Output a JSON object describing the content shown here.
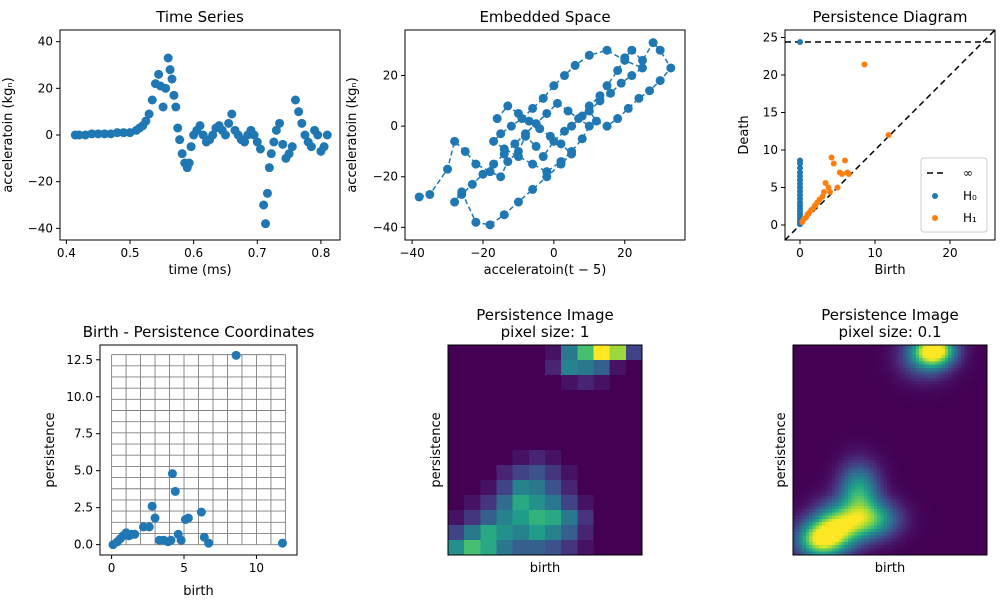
{
  "colors": {
    "blue": "#1f77b4",
    "orange": "#ff7f0e",
    "grid": "#808080",
    "viridis_low": "#440154",
    "viridis_high": "#fde725"
  },
  "chart_data": [
    {
      "type": "scatter",
      "title": "Time Series",
      "xlabel": "time (ms)",
      "ylabel": "acceleratoin (kgₙ)",
      "xlim": [
        0.39,
        0.83
      ],
      "ylim": [
        -45,
        45
      ],
      "xticks": [
        "0.4",
        "0.5",
        "0.6",
        "0.7",
        "0.8"
      ],
      "yticks": [
        "40",
        "20",
        "0",
        "−20",
        "−40"
      ],
      "xtick_values": [
        0.4,
        0.5,
        0.6,
        0.7,
        0.8
      ],
      "ytick_values": [
        40,
        20,
        0,
        -20,
        -40
      ],
      "x": [
        0.414,
        0.42,
        0.43,
        0.44,
        0.45,
        0.46,
        0.47,
        0.48,
        0.49,
        0.5,
        0.51,
        0.515,
        0.52,
        0.525,
        0.53,
        0.535,
        0.54,
        0.545,
        0.548,
        0.552,
        0.556,
        0.56,
        0.563,
        0.566,
        0.569,
        0.572,
        0.575,
        0.578,
        0.582,
        0.586,
        0.59,
        0.593,
        0.596,
        0.6,
        0.605,
        0.61,
        0.615,
        0.62,
        0.625,
        0.63,
        0.635,
        0.64,
        0.645,
        0.65,
        0.655,
        0.66,
        0.665,
        0.67,
        0.675,
        0.68,
        0.685,
        0.69,
        0.695,
        0.7,
        0.705,
        0.71,
        0.713,
        0.716,
        0.719,
        0.722,
        0.726,
        0.73,
        0.735,
        0.74,
        0.745,
        0.75,
        0.755,
        0.76,
        0.765,
        0.77,
        0.775,
        0.78,
        0.785,
        0.79,
        0.795,
        0.8,
        0.805,
        0.81
      ],
      "y": [
        0,
        0,
        0,
        0.5,
        0.5,
        0.5,
        0.5,
        1,
        1,
        1,
        2,
        3,
        4,
        6,
        9,
        15,
        22,
        26,
        21,
        12,
        20,
        33,
        28,
        24,
        17,
        12,
        3,
        -2,
        -8,
        -12,
        -14,
        -12,
        -5,
        0,
        2,
        4,
        0,
        -3,
        -2,
        0,
        3,
        4,
        2,
        0,
        5,
        9,
        2,
        0,
        -2,
        -3,
        0,
        2,
        0,
        -3,
        -6,
        -30,
        -38,
        -25,
        -14,
        -8,
        -3,
        2,
        5,
        -4,
        -10,
        -8,
        -5,
        15,
        10,
        5,
        0,
        -3,
        -5,
        2,
        0,
        -7,
        -5,
        0
      ]
    },
    {
      "type": "line",
      "title": "Embedded Space",
      "xlabel": "acceleratoin(t − 5)",
      "ylabel": "acceleratoin (kgₙ)",
      "xlim": [
        -42,
        37
      ],
      "ylim": [
        -45,
        38
      ],
      "xticks": [
        "−40",
        "−20",
        "0",
        "20"
      ],
      "yticks": [
        "20",
        "0",
        "−20",
        "−40"
      ],
      "xtick_values": [
        -40,
        -20,
        0,
        20
      ],
      "ytick_values": [
        20,
        0,
        -20,
        -40
      ],
      "line_style": "dashed",
      "x": [
        -38,
        -35,
        -30,
        -28,
        -25,
        -22,
        -18,
        -15,
        -13,
        -10,
        -8,
        -5,
        -3,
        0,
        3,
        5,
        8,
        10,
        13,
        15,
        18,
        20,
        22,
        25,
        28,
        30,
        33,
        30,
        27,
        24,
        21,
        18,
        15,
        12,
        10,
        13,
        16,
        19,
        22,
        25,
        20,
        15,
        10,
        6,
        3,
        0,
        -3,
        -6,
        -9,
        -12,
        -15,
        -17,
        -14,
        -10,
        -6,
        -2,
        2,
        5,
        8,
        10,
        7,
        4,
        1,
        -2,
        -5,
        -8,
        -11,
        -14,
        -17,
        -20,
        -23,
        -26,
        -28,
        -26,
        -22,
        -18,
        -14,
        -10,
        -6,
        -2,
        2,
        5,
        2,
        -1,
        -4,
        -7,
        -10,
        -13,
        -16
      ],
      "y": [
        -28,
        -27,
        -17,
        -6,
        -10,
        -15,
        -18,
        -20,
        -14,
        -10,
        -4,
        -8,
        -12,
        -6,
        -2,
        0,
        4,
        8,
        12,
        16,
        22,
        27,
        30,
        26,
        33,
        30,
        23,
        18,
        14,
        11,
        7,
        3,
        0,
        2,
        6,
        10,
        13,
        17,
        20,
        23,
        26,
        30,
        28,
        24,
        20,
        16,
        11,
        7,
        3,
        0,
        -3,
        -6,
        -9,
        -12,
        -15,
        -18,
        -14,
        -10,
        -5,
        0,
        3,
        6,
        9,
        5,
        1,
        -3,
        -7,
        -11,
        -15,
        -19,
        -23,
        -27,
        -30,
        -26,
        -38,
        -39,
        -35,
        -30,
        -25,
        -20,
        -15,
        -11,
        -7,
        -4,
        -1,
        2,
        5,
        8,
        3
      ]
    },
    {
      "type": "scatter",
      "title": "Persistence Diagram",
      "xlabel": "Birth",
      "ylabel": "Death",
      "xlim": [
        -2,
        26
      ],
      "ylim": [
        -2,
        26
      ],
      "xticks": [
        "0",
        "10",
        "20"
      ],
      "yticks": [
        "25",
        "20",
        "15",
        "10",
        "5",
        "0"
      ],
      "xtick_values": [
        0,
        10,
        20
      ],
      "ytick_values": [
        25,
        20,
        15,
        10,
        5,
        0
      ],
      "infinity_level": 24.4,
      "legend": {
        "position": "lower-right",
        "entries": [
          "∞",
          "H₀",
          "H₁"
        ]
      },
      "series": [
        {
          "name": "H₀",
          "x": [
            0,
            0,
            0,
            0,
            0,
            0,
            0,
            0,
            0,
            0,
            0,
            0,
            0,
            0,
            0,
            0,
            0,
            0,
            0,
            0,
            0
          ],
          "y": [
            24.4,
            8.6,
            8.2,
            7.6,
            7.0,
            6.5,
            6.0,
            5.5,
            5.0,
            4.5,
            4.0,
            3.5,
            3.0,
            2.6,
            2.2,
            1.8,
            1.4,
            1.0,
            0.6,
            0.3,
            0.1
          ]
        },
        {
          "name": "H₁",
          "x": [
            0.3,
            0.5,
            0.8,
            1.0,
            1.2,
            1.5,
            1.8,
            2.0,
            2.3,
            2.6,
            3.0,
            3.2,
            3.4,
            3.8,
            4.0,
            4.2,
            4.5,
            5.0,
            5.3,
            5.6,
            6.0,
            6.3,
            6.5,
            8.6,
            11.8
          ],
          "y": [
            0.4,
            0.8,
            1.0,
            1.4,
            1.6,
            2.0,
            2.2,
            2.6,
            3.0,
            3.4,
            3.8,
            4.4,
            5.6,
            5.0,
            4.4,
            9.0,
            8.2,
            5.0,
            7.0,
            6.8,
            8.6,
            7.0,
            6.8,
            21.4,
            12.0
          ]
        }
      ]
    },
    {
      "type": "scatter",
      "title": "Birth - Persistence Coordinates",
      "xlabel": "birth",
      "ylabel": "persistence",
      "xlim": [
        -0.8,
        12.8
      ],
      "ylim": [
        -0.7,
        13.5
      ],
      "xticks": [
        "0",
        "5",
        "10"
      ],
      "yticks": [
        "12.5",
        "10.0",
        "7.5",
        "5.0",
        "2.5",
        "0.0"
      ],
      "xtick_values": [
        0,
        5,
        10
      ],
      "ytick_values": [
        12.5,
        10.0,
        7.5,
        5.0,
        2.5,
        0.0
      ],
      "grid": true,
      "grid_x": [
        0,
        12
      ],
      "grid_y": [
        0,
        12.85
      ],
      "grid_cells": [
        12,
        17
      ],
      "x": [
        0.1,
        0.4,
        0.6,
        0.8,
        1.0,
        1.2,
        1.4,
        1.6,
        2.2,
        2.6,
        2.8,
        3.0,
        3.3,
        3.6,
        3.9,
        4.1,
        4.2,
        4.4,
        4.6,
        4.8,
        5.1,
        5.3,
        6.2,
        6.4,
        6.7,
        8.6,
        11.8
      ],
      "y": [
        0.0,
        0.2,
        0.4,
        0.6,
        0.8,
        0.6,
        0.7,
        0.7,
        1.2,
        1.2,
        2.6,
        1.8,
        0.3,
        0.3,
        0.2,
        0.3,
        4.8,
        3.6,
        0.7,
        0.3,
        1.7,
        1.8,
        2.2,
        0.5,
        0.1,
        12.8,
        0.1
      ]
    },
    {
      "type": "heatmap",
      "title": "Persistence Image\npixel size: 1",
      "xlabel": "birth",
      "ylabel": "persistence",
      "values": [
        [
          0.0,
          0.0,
          0.0,
          0.0,
          0.0,
          0.0,
          0.05,
          0.4,
          0.7,
          1.0,
          0.85,
          0.2
        ],
        [
          0.0,
          0.0,
          0.0,
          0.0,
          0.0,
          0.0,
          0.1,
          0.45,
          0.4,
          0.3,
          0.05,
          0.0
        ],
        [
          0.0,
          0.0,
          0.0,
          0.0,
          0.0,
          0.0,
          0.0,
          0.05,
          0.1,
          0.05,
          0.0,
          0.0
        ],
        [
          0.0,
          0.0,
          0.0,
          0.0,
          0.0,
          0.0,
          0.0,
          0.0,
          0.0,
          0.0,
          0.0,
          0.0
        ],
        [
          0.0,
          0.0,
          0.0,
          0.0,
          0.0,
          0.0,
          0.0,
          0.0,
          0.0,
          0.0,
          0.0,
          0.0
        ],
        [
          0.0,
          0.0,
          0.0,
          0.0,
          0.0,
          0.0,
          0.0,
          0.0,
          0.0,
          0.0,
          0.0,
          0.0
        ],
        [
          0.0,
          0.0,
          0.0,
          0.0,
          0.0,
          0.0,
          0.0,
          0.0,
          0.0,
          0.0,
          0.0,
          0.0
        ],
        [
          0.0,
          0.0,
          0.0,
          0.0,
          0.05,
          0.1,
          0.05,
          0.0,
          0.0,
          0.0,
          0.0,
          0.0
        ],
        [
          0.0,
          0.0,
          0.0,
          0.1,
          0.2,
          0.25,
          0.15,
          0.05,
          0.0,
          0.0,
          0.0,
          0.0
        ],
        [
          0.0,
          0.0,
          0.05,
          0.2,
          0.45,
          0.4,
          0.25,
          0.1,
          0.0,
          0.0,
          0.0,
          0.0
        ],
        [
          0.0,
          0.05,
          0.15,
          0.35,
          0.6,
          0.5,
          0.4,
          0.2,
          0.05,
          0.0,
          0.0,
          0.0
        ],
        [
          0.05,
          0.15,
          0.3,
          0.45,
          0.55,
          0.65,
          0.6,
          0.4,
          0.15,
          0.0,
          0.0,
          0.0
        ],
        [
          0.2,
          0.4,
          0.6,
          0.5,
          0.45,
          0.55,
          0.45,
          0.3,
          0.1,
          0.0,
          0.0,
          0.0
        ],
        [
          0.5,
          0.7,
          0.6,
          0.4,
          0.3,
          0.3,
          0.25,
          0.15,
          0.05,
          0.0,
          0.0,
          0.0
        ]
      ]
    },
    {
      "type": "heatmap",
      "title": "Persistence Image\npixel size: 0.1",
      "xlabel": "birth",
      "ylabel": "persistence",
      "x_range": [
        0,
        1
      ],
      "y_range": [
        0,
        1
      ],
      "blobs": [
        {
          "x": 0.73,
          "y": 0.975,
          "sx": 0.07,
          "sy": 0.05,
          "w": 1.0
        },
        {
          "x": 0.68,
          "y": 0.94,
          "sx": 0.09,
          "sy": 0.07,
          "w": 0.35
        },
        {
          "x": 0.13,
          "y": 0.07,
          "sx": 0.08,
          "sy": 0.06,
          "w": 0.75
        },
        {
          "x": 0.27,
          "y": 0.14,
          "sx": 0.09,
          "sy": 0.07,
          "w": 0.5
        },
        {
          "x": 0.34,
          "y": 0.3,
          "sx": 0.07,
          "sy": 0.09,
          "w": 0.6
        },
        {
          "x": 0.42,
          "y": 0.17,
          "sx": 0.09,
          "sy": 0.06,
          "w": 0.55
        },
        {
          "x": 0.2,
          "y": 0.12,
          "sx": 0.08,
          "sy": 0.08,
          "w": 0.45
        }
      ]
    }
  ]
}
